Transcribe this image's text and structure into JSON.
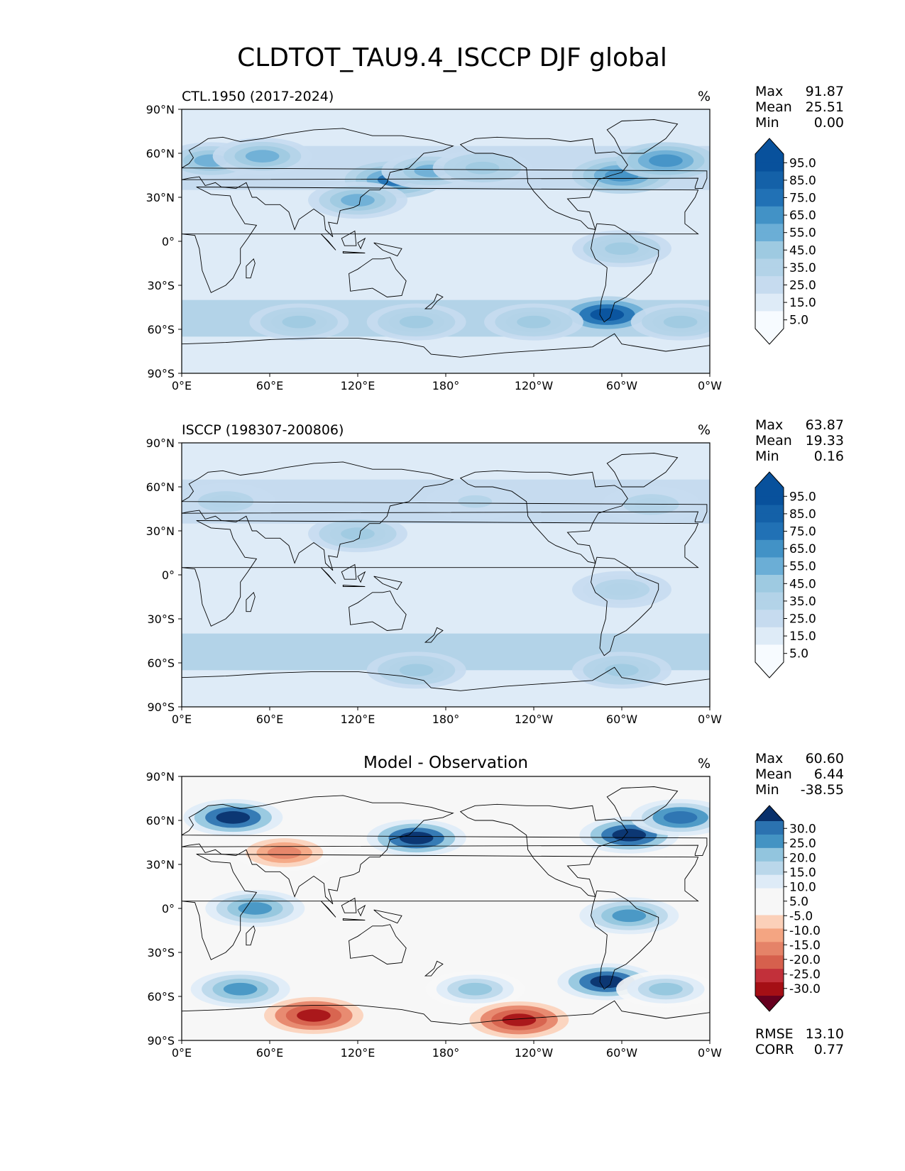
{
  "figure": {
    "title": "CLDTOT_TAU9.4_ISCCP DJF global"
  },
  "colors": {
    "blues": [
      "#f7fbff",
      "#deebf7",
      "#c6dbef",
      "#b3d3e8",
      "#9ecae1",
      "#6baed6",
      "#4292c6",
      "#2171b5",
      "#1461a8",
      "#08519c",
      "#08306b"
    ],
    "diverging": [
      "#67001f",
      "#a50f15",
      "#c2303a",
      "#d6604d",
      "#e58368",
      "#f4a582",
      "#fbd0b9",
      "#f7f7f7",
      "#f7f7f7",
      "#deebf7",
      "#bad7ea",
      "#92c5de",
      "#4393c3",
      "#2b72b0",
      "#08306b"
    ],
    "coast": "#000000"
  },
  "chart_data": [
    {
      "type": "heatmap",
      "panel": "test",
      "left_title": "CTL.1950 (2017-2024)",
      "center_title": "",
      "units": "%",
      "stats": [
        {
          "label": "Max",
          "value": "91.87"
        },
        {
          "label": "Mean",
          "value": "25.51"
        },
        {
          "label": "Min",
          "value": "0.00"
        }
      ],
      "colorbar": {
        "levels": [
          0,
          5,
          10,
          15,
          20,
          25,
          30,
          35,
          40,
          45,
          50,
          55,
          60,
          65,
          70,
          75,
          80,
          85,
          90,
          95,
          100
        ],
        "tick_labels": [
          "5.0",
          "15.0",
          "25.0",
          "35.0",
          "45.0",
          "55.0",
          "65.0",
          "75.0",
          "85.0",
          "95.0"
        ],
        "extend": "both"
      },
      "xticks": [
        "0°E",
        "60°E",
        "120°E",
        "180°",
        "120°W",
        "60°W",
        "0°W"
      ],
      "yticks": [
        "90°N",
        "60°N",
        "30°N",
        "0°",
        "30°S",
        "60°S",
        "90°S"
      ],
      "xlim": [
        0,
        360
      ],
      "ylim": [
        -90,
        90
      ],
      "field_features": [
        {
          "lon": 20,
          "lat": 55,
          "value": 55
        },
        {
          "lon": 55,
          "lat": 58,
          "value": 50
        },
        {
          "lon": 145,
          "lat": 42,
          "value": 70
        },
        {
          "lon": 170,
          "lat": 48,
          "value": 55
        },
        {
          "lon": 205,
          "lat": 50,
          "value": 45
        },
        {
          "lon": 300,
          "lat": 45,
          "value": 65
        },
        {
          "lon": 330,
          "lat": 55,
          "value": 60
        },
        {
          "lon": 120,
          "lat": 28,
          "value": 50
        },
        {
          "lon": 300,
          "lat": -5,
          "value": 40
        },
        {
          "lon": 290,
          "lat": -50,
          "value": 90
        },
        {
          "lon": 80,
          "lat": -55,
          "value": 45
        },
        {
          "lon": 160,
          "lat": -55,
          "value": 45
        },
        {
          "lon": 240,
          "lat": -55,
          "value": 45
        },
        {
          "lon": 340,
          "lat": -55,
          "value": 45
        }
      ]
    },
    {
      "type": "heatmap",
      "panel": "reference",
      "left_title": "ISCCP (198307-200806)",
      "center_title": "",
      "units": "%",
      "stats": [
        {
          "label": "Max",
          "value": "63.87"
        },
        {
          "label": "Mean",
          "value": "19.33"
        },
        {
          "label": "Min",
          "value": "0.16"
        }
      ],
      "colorbar": {
        "levels": [
          0,
          5,
          10,
          15,
          20,
          25,
          30,
          35,
          40,
          45,
          50,
          55,
          60,
          65,
          70,
          75,
          80,
          85,
          90,
          95,
          100
        ],
        "tick_labels": [
          "5.0",
          "15.0",
          "25.0",
          "35.0",
          "45.0",
          "55.0",
          "65.0",
          "75.0",
          "85.0",
          "95.0"
        ],
        "extend": "both"
      },
      "xticks": [
        "0°E",
        "60°E",
        "120°E",
        "180°",
        "120°W",
        "60°W",
        "0°W"
      ],
      "yticks": [
        "90°N",
        "60°N",
        "30°N",
        "0°",
        "30°S",
        "60°S",
        "90°S"
      ],
      "xlim": [
        0,
        360
      ],
      "ylim": [
        -90,
        90
      ],
      "field_features": [
        {
          "lon": 120,
          "lat": 28,
          "value": 45
        },
        {
          "lon": 30,
          "lat": 50,
          "value": 35
        },
        {
          "lon": 320,
          "lat": 48,
          "value": 35
        },
        {
          "lon": 200,
          "lat": 50,
          "value": 30
        },
        {
          "lon": 300,
          "lat": -65,
          "value": 45
        },
        {
          "lon": 160,
          "lat": -65,
          "value": 40
        },
        {
          "lon": 300,
          "lat": -10,
          "value": 35
        }
      ]
    },
    {
      "type": "heatmap",
      "panel": "difference",
      "left_title": "",
      "center_title": "Model - Observation",
      "units": "%",
      "stats": [
        {
          "label": "Max",
          "value": "60.60"
        },
        {
          "label": "Mean",
          "value": "6.44"
        },
        {
          "label": "Min",
          "value": "-38.55"
        }
      ],
      "bottom_stats": [
        {
          "label": "RMSE",
          "value": "13.10"
        },
        {
          "label": "CORR",
          "value": "0.77"
        }
      ],
      "colorbar": {
        "levels": [
          -35,
          -30,
          -25,
          -20,
          -15,
          -10,
          -5,
          0,
          5,
          10,
          15,
          20,
          25,
          30,
          35
        ],
        "tick_labels": [
          "-30.0",
          "-25.0",
          "-20.0",
          "-15.0",
          "-10.0",
          "-5.0",
          "5.0",
          "10.0",
          "15.0",
          "20.0",
          "25.0",
          "30.0"
        ],
        "extend": "both"
      },
      "xticks": [
        "0°E",
        "60°E",
        "120°E",
        "180°",
        "120°W",
        "60°W",
        "0°W"
      ],
      "yticks": [
        "90°N",
        "60°N",
        "30°N",
        "0°",
        "30°S",
        "60°S",
        "90°S"
      ],
      "xlim": [
        0,
        360
      ],
      "ylim": [
        -90,
        90
      ],
      "field_features": [
        {
          "lon": 35,
          "lat": 62,
          "value": 35
        },
        {
          "lon": 160,
          "lat": 48,
          "value": 40
        },
        {
          "lon": 305,
          "lat": 50,
          "value": 40
        },
        {
          "lon": 340,
          "lat": 62,
          "value": 30
        },
        {
          "lon": 70,
          "lat": 38,
          "value": -15
        },
        {
          "lon": 50,
          "lat": 0,
          "value": 25
        },
        {
          "lon": 305,
          "lat": -5,
          "value": 25
        },
        {
          "lon": 290,
          "lat": -50,
          "value": 40
        },
        {
          "lon": 40,
          "lat": -55,
          "value": 25
        },
        {
          "lon": 200,
          "lat": -55,
          "value": 20
        },
        {
          "lon": 330,
          "lat": -55,
          "value": 20
        },
        {
          "lon": 90,
          "lat": -73,
          "value": -30
        },
        {
          "lon": 230,
          "lat": -76,
          "value": -30
        }
      ]
    }
  ]
}
